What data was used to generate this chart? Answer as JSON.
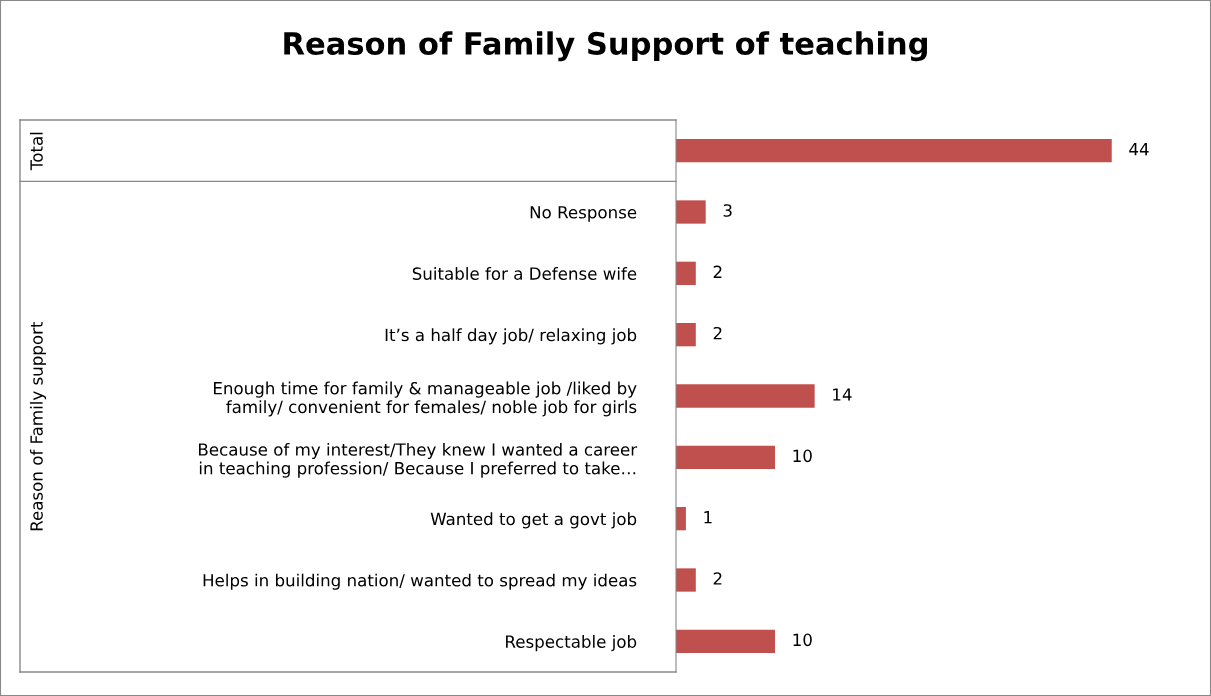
{
  "chart_data": {
    "type": "bar",
    "orientation": "horizontal",
    "title": "Reason of Family Support of teaching",
    "categories": [
      null,
      "No Response",
      "Suitable for a Defense wife",
      "It’s a half day job/ relaxing job",
      "Enough time for family & manageable job /liked by\nfamily/ convenient for females/ noble job for girls",
      "Because of my interest/They knew I wanted a career\nin teaching profession/ Because I preferred to take…",
      "Wanted to get a govt job",
      "Helps in building nation/ wanted to spread my ideas",
      "Respectable job"
    ],
    "values": [
      44,
      3,
      2,
      2,
      14,
      10,
      1,
      2,
      10
    ],
    "color": "#c0504d",
    "data_labels": true,
    "tick_labels": "y",
    "grid": false,
    "legend": false,
    "annotations": [
      "Total",
      "Reason of Family support"
    ]
  }
}
